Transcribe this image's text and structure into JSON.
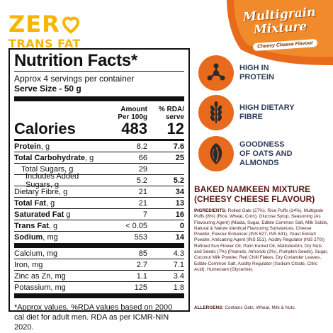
{
  "badge": {
    "line1": "ZER",
    "line2": "TRANS FAT",
    "color": "#f7b500"
  },
  "brand": {
    "title_line1": "Multigrain",
    "title_line2": "Mixture",
    "subtitle": "Cheesy Cheese Flavour",
    "accent": "#e86a1c"
  },
  "nutrition": {
    "title": "Nutrition Facts*",
    "servings": "Approx 4 servings per container",
    "serving_size": "Serve Size - 50 g",
    "col1": [
      "Amount",
      "Per 100g"
    ],
    "col2": [
      "% RDA/",
      "serve"
    ],
    "calories": {
      "label": "Calories",
      "per100": "483",
      "rda": "12"
    },
    "rows": [
      {
        "label": "Protein",
        "unit": ", g",
        "per100": "8.2",
        "rda": "7.6",
        "bold": true
      },
      {
        "label": "Total Carbohydrate",
        "unit": ", g",
        "per100": "66",
        "rda": "25",
        "bold": true
      },
      {
        "label": "Total Sugars, g",
        "unit": "",
        "per100": "29",
        "rda": "",
        "bold": false,
        "indent": 1
      },
      {
        "label": "Includes Added Sugars, g",
        "unit": "",
        "per100": "5.2",
        "rda": "5.2",
        "bold": false,
        "indent": 2
      },
      {
        "label": "Dietary Fibre, g",
        "unit": "",
        "per100": "21",
        "rda": "34",
        "bold": false
      },
      {
        "label": "Total Fat",
        "unit": ", g",
        "per100": "21",
        "rda": "13",
        "bold": true
      },
      {
        "label": "Saturated Fat",
        "unit": " g",
        "per100": "7",
        "rda": "16",
        "bold": true
      },
      {
        "label": "Trans Fat",
        "unit": ", g",
        "per100": "< 0.05",
        "rda": "0",
        "bold": true
      },
      {
        "label": "Sodium",
        "unit": ", mg",
        "per100": "553",
        "rda": "14",
        "bold": true
      }
    ],
    "minerals": [
      {
        "label": "Calcium, mg",
        "per100": "85",
        "rda": "4.3"
      },
      {
        "label": "Iron, mg",
        "per100": "2.7",
        "rda": "7.1"
      },
      {
        "label": "Zinc as Zn, mg",
        "per100": "1.1",
        "rda": "3.4"
      },
      {
        "label": "Potassium, mg",
        "per100": "125",
        "rda": "1.8"
      }
    ],
    "footnote": "*Approx values. %RDA values based on 2000 cal diet for adult men. RDA as per ICMR-NIN 2020."
  },
  "features": [
    {
      "icon": "molecule-icon",
      "line1": "HIGH IN",
      "line2": "PROTEIN"
    },
    {
      "icon": "wheat-icon",
      "line1": "HIGH DIETARY",
      "line2": "FIBRE"
    },
    {
      "icon": "almond-icon",
      "line1": "GOODNESS",
      "line2": "OF OATS AND ALMONDS"
    }
  ],
  "product": {
    "title_line1": "BAKED NAMKEEN MIXTURE",
    "title_line2": "(CHEESY CHEESE FLAVOUR)",
    "ingredients_label": "INGREDIENTS:",
    "ingredients_text": "Rolled Oats (27%), Rice Puffs (14%), Multigrain Puffs (8%) (Rice, Wheat, Corn), Glucose Syrup, Seasoning (As Flavouring Agent) (Maida, Sugar, Edible Common Salt, Milk Solids, Natural & Nature Identical Flavouring Substances, Cheese Powder, Flavour Enhancer (INS 627, INS 631), Yeast Extract Powder, Anticaking Agent (INS 551), Acidity Regulator (INS 270)) Refined Sun Flower Oil, Palm Kernel Oil, Maltodextrin, Dry Nuts and Seeds (7%) (Peanuts, Almonds (2%), Pumpkin Seeds), Sugar, Coconut Milk Powder, Red Chilli Flakes, Dry Coriander Leaves, Edible Common Salt, Acidity Regulator (Sodium Citrate, Citric Acid), Humectant (Glycerine).",
    "allergens_label": "ALLERGENS:",
    "allergens_text": "Contains Oats, Wheat, Milk & Nuts."
  }
}
